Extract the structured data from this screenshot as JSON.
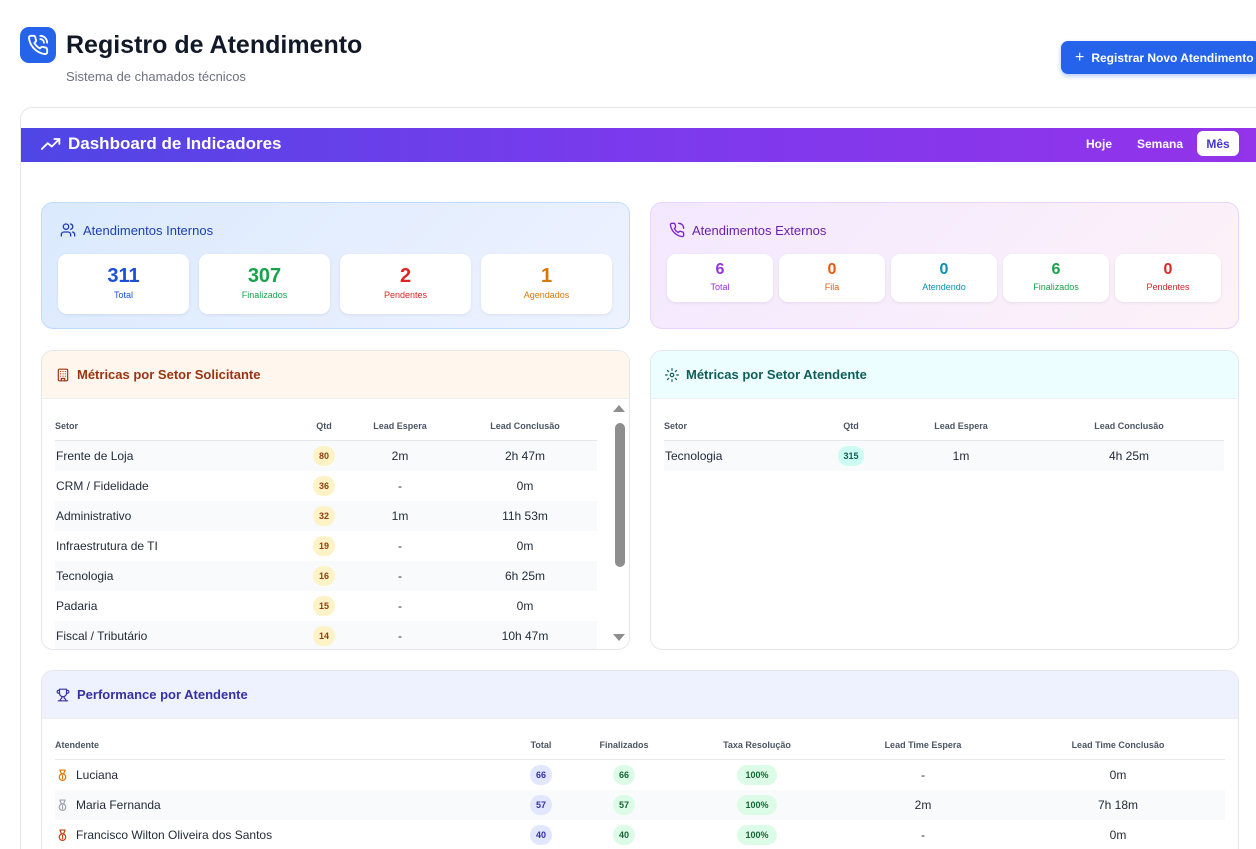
{
  "header": {
    "title": "Registro de Atendimento",
    "subtitle": "Sistema de chamados técnicos",
    "new_button": "Registrar Novo Atendimento"
  },
  "dashboard": {
    "title": "Dashboard de Indicadores",
    "periods": [
      "Hoje",
      "Semana",
      "Mês"
    ],
    "active_period": "Mês"
  },
  "internos": {
    "title": "Atendimentos Internos",
    "stats": [
      {
        "value": "311",
        "label": "Total",
        "color": "#1d4ed8"
      },
      {
        "value": "307",
        "label": "Finalizados",
        "color": "#16a34a"
      },
      {
        "value": "2",
        "label": "Pendentes",
        "color": "#dc2626"
      },
      {
        "value": "1",
        "label": "Agendados",
        "color": "#d97706"
      }
    ]
  },
  "externos": {
    "title": "Atendimentos Externos",
    "stats": [
      {
        "value": "6",
        "label": "Total",
        "color": "#9333ea"
      },
      {
        "value": "0",
        "label": "Fila",
        "color": "#ea580c"
      },
      {
        "value": "0",
        "label": "Atendendo",
        "color": "#0891b2"
      },
      {
        "value": "6",
        "label": "Finalizados",
        "color": "#16a34a"
      },
      {
        "value": "0",
        "label": "Pendentes",
        "color": "#dc2626"
      }
    ]
  },
  "setor_solicitante": {
    "title": "Métricas por Setor Solicitante",
    "columns": [
      "Setor",
      "Qtd",
      "Lead Espera",
      "Lead Conclusão"
    ],
    "rows": [
      {
        "setor": "Frente de Loja",
        "qtd": "80",
        "espera": "2m",
        "conclusao": "2h 47m"
      },
      {
        "setor": "CRM / Fidelidade",
        "qtd": "36",
        "espera": "-",
        "conclusao": "0m"
      },
      {
        "setor": "Administrativo",
        "qtd": "32",
        "espera": "1m",
        "conclusao": "11h 53m"
      },
      {
        "setor": "Infraestrutura de TI",
        "qtd": "19",
        "espera": "-",
        "conclusao": "0m"
      },
      {
        "setor": "Tecnologia",
        "qtd": "16",
        "espera": "-",
        "conclusao": "6h 25m"
      },
      {
        "setor": "Padaria",
        "qtd": "15",
        "espera": "-",
        "conclusao": "0m"
      },
      {
        "setor": "Fiscal / Tributário",
        "qtd": "14",
        "espera": "-",
        "conclusao": "10h 47m"
      }
    ]
  },
  "setor_atendente": {
    "title": "Métricas por Setor Atendente",
    "columns": [
      "Setor",
      "Qtd",
      "Lead Espera",
      "Lead Conclusão"
    ],
    "rows": [
      {
        "setor": "Tecnologia",
        "qtd": "315",
        "espera": "1m",
        "conclusao": "4h 25m"
      }
    ]
  },
  "performance": {
    "title": "Performance por Atendente",
    "columns": [
      "Atendente",
      "Total",
      "Finalizados",
      "Taxa Resolução",
      "Lead Time Espera",
      "Lead Time Conclusão"
    ],
    "rows": [
      {
        "nome": "Luciana",
        "medal": "gold",
        "total": "66",
        "finalizados": "66",
        "taxa": "100%",
        "espera": "-",
        "conclusao": "0m"
      },
      {
        "nome": "Maria Fernanda",
        "medal": "silver",
        "total": "57",
        "finalizados": "57",
        "taxa": "100%",
        "espera": "2m",
        "conclusao": "7h 18m"
      },
      {
        "nome": "Francisco Wilton Oliveira dos Santos",
        "medal": "bronze",
        "total": "40",
        "finalizados": "40",
        "taxa": "100%",
        "espera": "-",
        "conclusao": "0m"
      }
    ]
  },
  "colors": {
    "primary": "#2563eb",
    "banner_start": "#4f46e5",
    "banner_end": "#9333ea",
    "gold": "#d97706",
    "silver": "#9ca3af",
    "bronze": "#c2410c"
  },
  "icons": {
    "header": "phone-call-icon",
    "banner": "trending-up-icon",
    "internos": "users-icon",
    "externos": "phone-icon",
    "solicitante": "building-icon",
    "atendente": "gear-icon",
    "performance": "trophy-icon",
    "medal": "medal-icon"
  }
}
